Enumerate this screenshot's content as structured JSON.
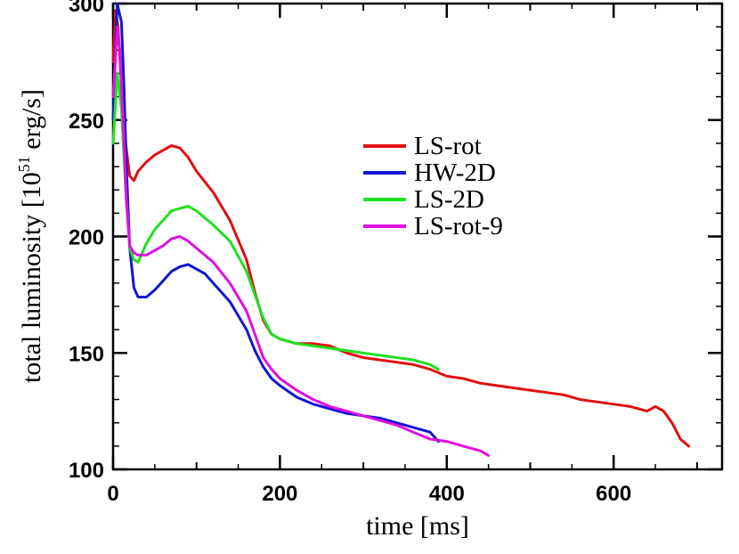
{
  "chart_data": {
    "type": "line",
    "title": "",
    "xlabel": "time [ms]",
    "ylabel_prefix": "total luminosity [10",
    "ylabel_sup": "51",
    "ylabel_suffix": " erg/s]",
    "xlim": [
      0,
      730
    ],
    "ylim": [
      100,
      300
    ],
    "xticks": [
      0,
      200,
      400,
      600
    ],
    "yticks": [
      100,
      150,
      200,
      250,
      300
    ],
    "legend_position": "top-center",
    "series": [
      {
        "name": "LS-rot",
        "color": "#e01010",
        "x": [
          0,
          3,
          6,
          10,
          15,
          20,
          25,
          30,
          40,
          50,
          60,
          70,
          80,
          90,
          100,
          120,
          140,
          160,
          170,
          180,
          190,
          200,
          220,
          240,
          260,
          280,
          300,
          320,
          340,
          360,
          380,
          400,
          420,
          440,
          460,
          480,
          500,
          520,
          540,
          560,
          580,
          600,
          620,
          640,
          650,
          660,
          670,
          680,
          690
        ],
        "y": [
          275,
          297,
          290,
          265,
          240,
          226,
          224,
          228,
          232,
          235,
          237,
          239,
          238,
          234,
          228,
          219,
          207,
          190,
          176,
          164,
          158,
          156,
          154,
          154,
          153,
          150,
          148,
          147,
          146,
          145,
          143,
          140,
          139,
          137,
          136,
          135,
          134,
          133,
          132,
          130,
          129,
          128,
          127,
          125,
          127,
          125,
          120,
          113,
          110
        ]
      },
      {
        "name": "HW-2D",
        "color": "#1515d0",
        "x": [
          0,
          5,
          10,
          13,
          16,
          20,
          25,
          30,
          40,
          50,
          60,
          70,
          80,
          90,
          100,
          110,
          120,
          140,
          160,
          170,
          180,
          190,
          200,
          220,
          240,
          260,
          280,
          300,
          320,
          340,
          360,
          380,
          390
        ],
        "y": [
          250,
          300,
          292,
          265,
          230,
          195,
          178,
          174,
          174,
          177,
          181,
          185,
          187,
          188,
          186,
          184,
          180,
          172,
          160,
          151,
          144,
          139,
          136,
          131,
          128,
          126,
          124,
          123,
          122,
          120,
          118,
          116,
          112
        ]
      },
      {
        "name": "LS-2D",
        "color": "#20e020",
        "x": [
          0,
          5,
          10,
          15,
          20,
          25,
          30,
          40,
          50,
          60,
          70,
          80,
          90,
          100,
          120,
          140,
          160,
          170,
          180,
          190,
          200,
          220,
          240,
          260,
          280,
          300,
          320,
          340,
          360,
          380,
          390
        ],
        "y": [
          240,
          270,
          255,
          220,
          195,
          190,
          189,
          197,
          203,
          207,
          211,
          212,
          213,
          211,
          205,
          198,
          185,
          175,
          165,
          158,
          156,
          154,
          153,
          152,
          151,
          150,
          149,
          148,
          147,
          145,
          143
        ]
      },
      {
        "name": "LS-rot-9",
        "color": "#e010e0",
        "x": [
          0,
          5,
          8,
          12,
          16,
          20,
          25,
          30,
          40,
          50,
          60,
          70,
          80,
          90,
          100,
          120,
          140,
          160,
          170,
          180,
          190,
          200,
          220,
          240,
          260,
          280,
          300,
          320,
          340,
          360,
          380,
          400,
          420,
          440,
          450
        ],
        "y": [
          260,
          290,
          280,
          250,
          215,
          196,
          193,
          192,
          192,
          194,
          196,
          199,
          200,
          198,
          195,
          189,
          180,
          168,
          158,
          148,
          143,
          139,
          134,
          130,
          127,
          125,
          123,
          121,
          119,
          116,
          113,
          112,
          110,
          108,
          106
        ]
      }
    ]
  }
}
